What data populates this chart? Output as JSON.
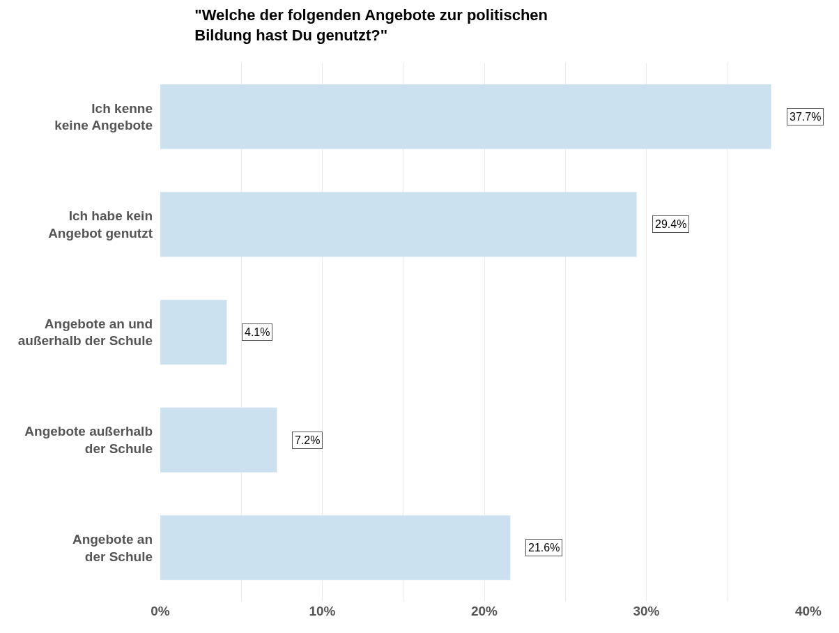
{
  "chart_data": {
    "type": "bar",
    "orientation": "horizontal",
    "title": "\"Welche der folgenden Angebote zur politischen\nBildung hast Du genutzt?\"",
    "categories": [
      "Ich kenne\nkeine Angebote",
      "Ich habe kein\nAngebot genutzt",
      "Angebote an und\naußerhalb der Schule",
      "Angebote außerhalb\nder Schule",
      "Angebote an\nder Schule"
    ],
    "values": [
      37.7,
      29.4,
      4.1,
      7.2,
      21.6
    ],
    "value_labels": [
      "37.7%",
      "29.4%",
      "4.1%",
      "7.2%",
      "21.6%"
    ],
    "color": "#cce1f0",
    "xlim": [
      0,
      40
    ],
    "xticks": [
      {
        "value": 0,
        "label": "0%"
      },
      {
        "value": 5,
        "label": null
      },
      {
        "value": 10,
        "label": "10%"
      },
      {
        "value": 15,
        "label": null
      },
      {
        "value": 20,
        "label": "20%"
      },
      {
        "value": 25,
        "label": null
      },
      {
        "value": 30,
        "label": "30%"
      },
      {
        "value": 35,
        "label": null
      },
      {
        "value": 40,
        "label": "40%"
      }
    ],
    "grid": "x"
  }
}
